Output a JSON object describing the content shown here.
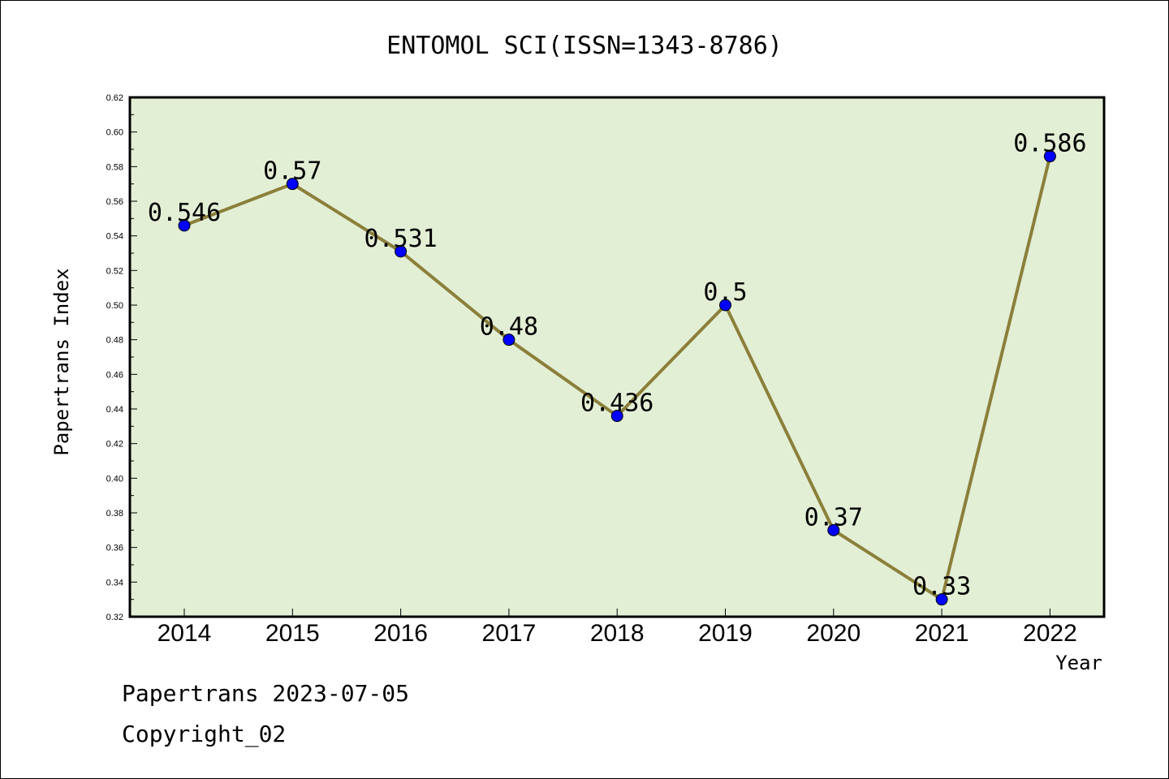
{
  "chart_data": {
    "type": "line",
    "title": "ENTOMOL SCI(ISSN=1343-8786)",
    "xlabel": "Year",
    "ylabel": "Papertrans Index",
    "categories": [
      "2014",
      "2015",
      "2016",
      "2017",
      "2018",
      "2019",
      "2020",
      "2021",
      "2022"
    ],
    "series": [
      {
        "values": [
          0.546,
          0.57,
          0.531,
          0.48,
          0.436,
          0.5,
          0.37,
          0.33,
          0.586
        ],
        "data_labels": [
          "0.546",
          "0.57",
          "0.531",
          "0.48",
          "0.436",
          "0.5",
          "0.37",
          "0.33",
          "0.586"
        ]
      }
    ],
    "ylim": [
      0.32,
      0.62
    ],
    "yticks": [
      "0.32",
      "0.34",
      "0.36",
      "0.38",
      "0.40",
      "0.42",
      "0.44",
      "0.46",
      "0.48",
      "0.50",
      "0.52",
      "0.54",
      "0.56",
      "0.58",
      "0.60",
      "0.62"
    ],
    "grid": false,
    "legend": "none",
    "colors": {
      "plot_background": "#e2efd5",
      "line": "#8b7f3a",
      "marker": "#0000ff"
    }
  },
  "footer": {
    "line1": "Papertrans 2023-07-05",
    "line2": "Copyright_02"
  }
}
